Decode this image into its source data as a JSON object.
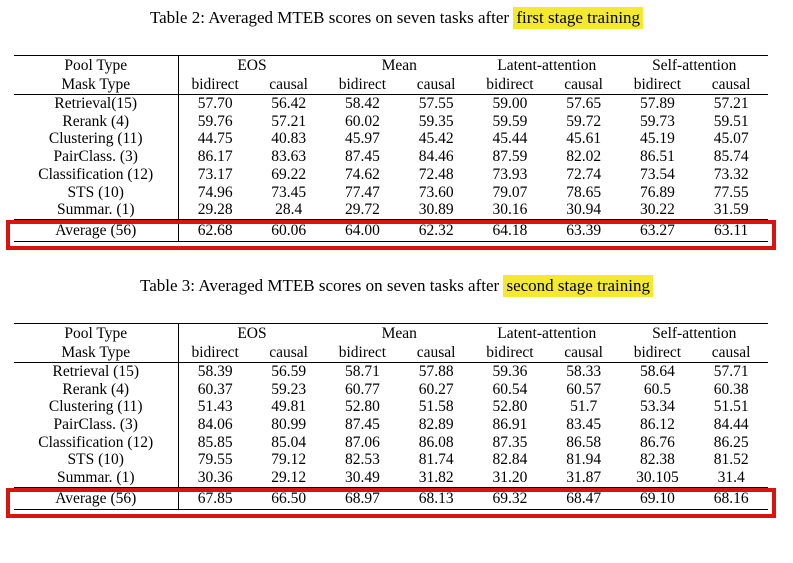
{
  "colors": {
    "highlight": "#f3ea30",
    "annotation_box": "#d81410",
    "text": "#000000",
    "rule": "#000000",
    "background": "#ffffff"
  },
  "tables": [
    {
      "caption_prefix": "Table 2: Averaged MTEB scores on seven tasks after ",
      "caption_highlight": "first stage training",
      "header": {
        "pool_type_label": "Pool Type",
        "mask_type_label": "Mask Type",
        "groups": [
          "EOS",
          "Mean",
          "Latent-attention",
          "Self-attention"
        ],
        "mask_cols": [
          "bidirect",
          "causal",
          "bidirect",
          "causal",
          "bidirect",
          "causal",
          "bidirect",
          "causal"
        ]
      },
      "rows": [
        {
          "label": "Retrieval(15)",
          "values": [
            "57.70",
            "56.42",
            "58.42",
            "57.55",
            "59.00",
            "57.65",
            "57.89",
            "57.21"
          ],
          "bold": [
            4
          ]
        },
        {
          "label": "Rerank (4)",
          "values": [
            "59.76",
            "57.21",
            "60.02",
            "59.35",
            "59.59",
            "59.72",
            "59.73",
            "59.51"
          ],
          "bold": []
        },
        {
          "label": "Clustering (11)",
          "values": [
            "44.75",
            "40.83",
            "45.97",
            "45.42",
            "45.44",
            "45.61",
            "45.19",
            "45.07"
          ],
          "bold": []
        },
        {
          "label": "PairClass. (3)",
          "values": [
            "86.17",
            "83.63",
            "87.45",
            "84.46",
            "87.59",
            "82.02",
            "86.51",
            "85.74"
          ],
          "bold": []
        },
        {
          "label": "Classification (12)",
          "values": [
            "73.17",
            "69.22",
            "74.62",
            "72.48",
            "73.93",
            "72.74",
            "73.54",
            "73.32"
          ],
          "bold": []
        },
        {
          "label": "STS (10)",
          "values": [
            "74.96",
            "73.45",
            "77.47",
            "73.60",
            "79.07",
            "78.65",
            "76.89",
            "77.55"
          ],
          "bold": []
        },
        {
          "label": "Summar. (1)",
          "values": [
            "29.28",
            "28.4",
            "29.72",
            "30.89",
            "30.16",
            "30.94",
            "30.22",
            "31.59"
          ],
          "bold": []
        }
      ],
      "average_row": {
        "label": "Average (56)",
        "values": [
          "62.68",
          "60.06",
          "64.00",
          "62.32",
          "64.18",
          "63.39",
          "63.27",
          "63.11"
        ],
        "bold": [
          4
        ],
        "label_bold": true
      }
    },
    {
      "caption_prefix": "Table 3: Averaged MTEB scores on seven tasks after ",
      "caption_highlight": "second stage training",
      "header": {
        "pool_type_label": "Pool Type",
        "mask_type_label": "Mask Type",
        "groups": [
          "EOS",
          "Mean",
          "Latent-attention",
          "Self-attention"
        ],
        "mask_cols": [
          "bidirect",
          "causal",
          "bidirect",
          "causal",
          "bidirect",
          "causal",
          "bidirect",
          "causal"
        ]
      },
      "rows": [
        {
          "label": "Retrieval (15)",
          "values": [
            "58.39",
            "56.59",
            "58.71",
            "57.88",
            "59.36",
            "58.33",
            "58.64",
            "57.71"
          ],
          "bold": [
            4
          ]
        },
        {
          "label": "Rerank (4)",
          "values": [
            "60.37",
            "59.23",
            "60.77",
            "60.27",
            "60.54",
            "60.57",
            "60.5",
            "60.38"
          ],
          "bold": []
        },
        {
          "label": "Clustering (11)",
          "values": [
            "51.43",
            "49.81",
            "52.80",
            "51.58",
            "52.80",
            "51.7",
            "53.34",
            "51.51"
          ],
          "bold": []
        },
        {
          "label": "PairClass. (3)",
          "values": [
            "84.06",
            "80.99",
            "87.45",
            "82.89",
            "86.91",
            "83.45",
            "86.12",
            "84.44"
          ],
          "bold": []
        },
        {
          "label": "Classification (12)",
          "values": [
            "85.85",
            "85.04",
            "87.06",
            "86.08",
            "87.35",
            "86.58",
            "86.76",
            "86.25"
          ],
          "bold": []
        },
        {
          "label": "STS (10)",
          "values": [
            "79.55",
            "79.12",
            "82.53",
            "81.74",
            "82.84",
            "81.94",
            "82.38",
            "81.52"
          ],
          "bold": []
        },
        {
          "label": "Summar. (1)",
          "values": [
            "30.36",
            "29.12",
            "30.49",
            "31.82",
            "31.20",
            "31.87",
            "30.105",
            "31.4"
          ],
          "bold": []
        }
      ],
      "average_row": {
        "label": "Average (56)",
        "values": [
          "67.85",
          "66.50",
          "68.97",
          "68.13",
          "69.32",
          "68.47",
          "69.10",
          "68.16"
        ],
        "bold": [
          4
        ],
        "label_bold": true
      }
    }
  ]
}
